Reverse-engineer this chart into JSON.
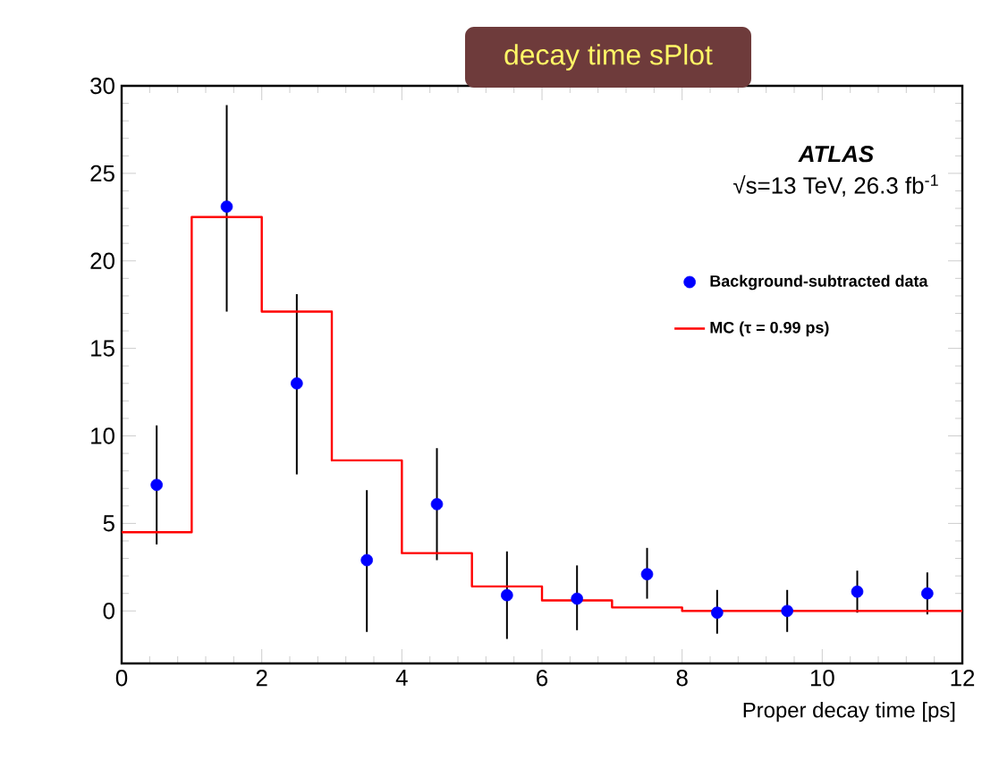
{
  "chart_data": {
    "type": "scatter",
    "title": "decay time sPlot",
    "xlabel": "Proper decay time [ps]",
    "annotations": [
      "**ATLAS**",
      "√s=13 TeV, 26.3 fb$^{-1}$"
    ],
    "xlim": [
      0,
      12
    ],
    "xticks": [
      0,
      2,
      4,
      6,
      8,
      10,
      12
    ],
    "ylim": [
      -3,
      30
    ],
    "yticks": [
      0,
      5,
      10,
      15,
      20,
      25,
      30
    ],
    "legend": "right",
    "grid": false,
    "series": [
      {
        "name": "Background-subtracted data",
        "marker": "circle",
        "color": "#0000ff",
        "x": [
          0.5,
          1.5,
          2.5,
          3.5,
          4.5,
          5.5,
          6.5,
          7.5,
          8.5,
          9.5,
          10.5,
          11.5
        ],
        "values": [
          7.2,
          23.1,
          13,
          2.9,
          6.1,
          0.9,
          0.7,
          2.1,
          -0.1,
          0,
          1.1,
          1.0
        ],
        "errors": [
          [
            3.8,
            10.6
          ],
          [
            17.1,
            28.9
          ],
          [
            7.8,
            18.1
          ],
          [
            -1.2,
            6.9
          ],
          [
            2.9,
            9.3
          ],
          [
            -1.6,
            3.4
          ],
          [
            -1.1,
            2.6
          ],
          [
            0.7,
            3.6
          ],
          [
            -1.3,
            1.2
          ],
          [
            -1.2,
            1.2
          ],
          [
            -0.1,
            2.3
          ],
          [
            -0.2,
            2.2
          ]
        ]
      },
      {
        "name": "MC (τ = 0.99 ps)",
        "type": "step",
        "marker": "none",
        "color": "#ff0000",
        "x": [
          0,
          1,
          2,
          3,
          4,
          5,
          6,
          7,
          8,
          9,
          10,
          11,
          12
        ],
        "values": [
          4.5,
          22.5,
          17.1,
          8.6,
          3.3,
          1.4,
          0.6,
          0.2,
          0,
          0,
          0,
          0,
          0
        ]
      }
    ]
  }
}
